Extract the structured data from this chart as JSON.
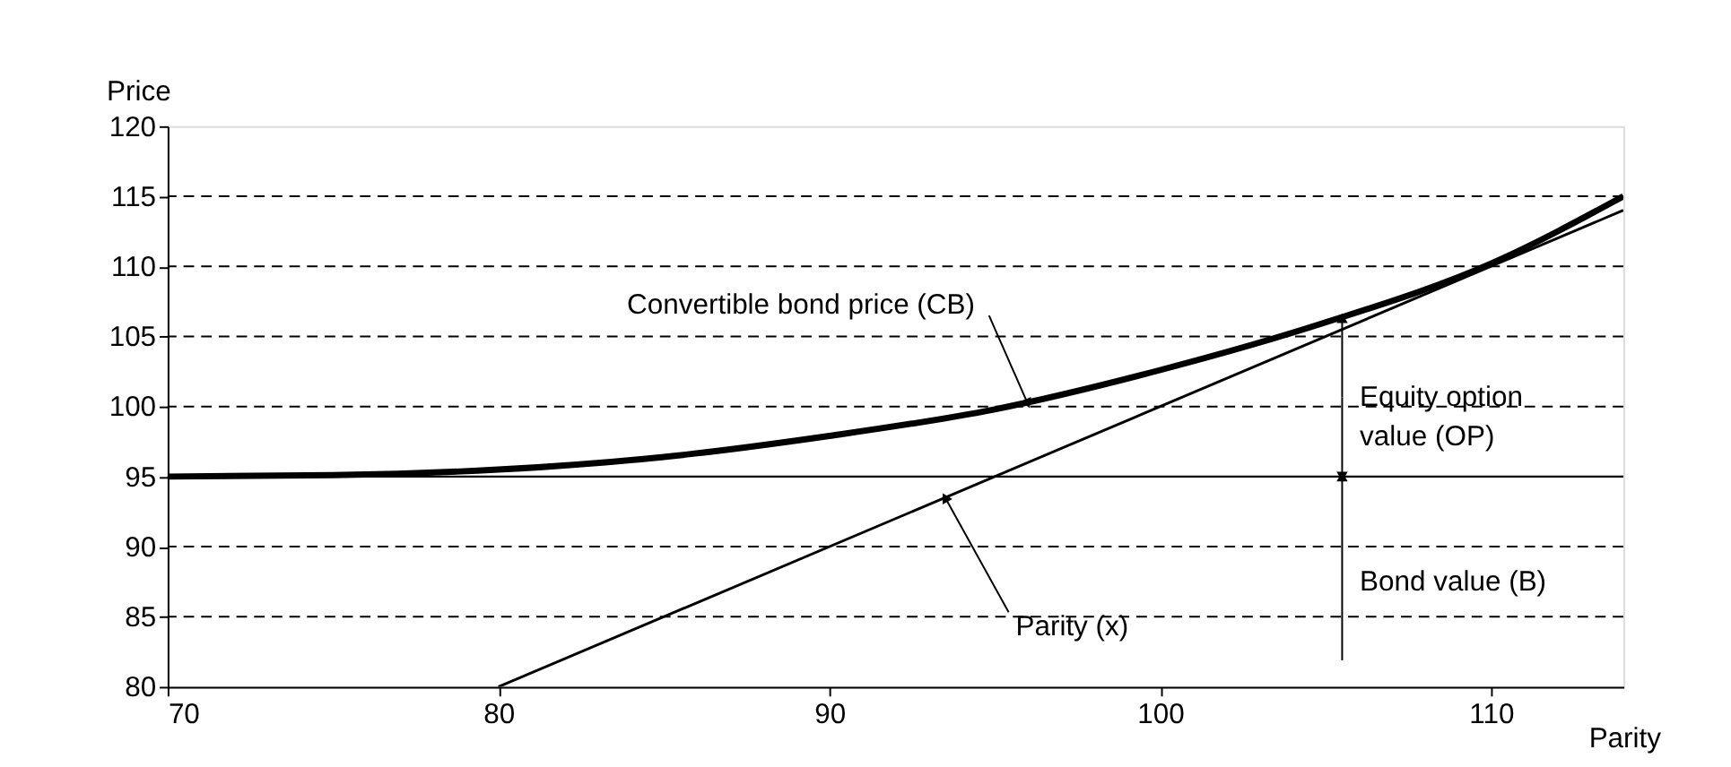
{
  "chart_data": {
    "type": "line",
    "xlabel": "Parity",
    "ylabel": "Price",
    "xlim": [
      70,
      114
    ],
    "xticks": [
      70,
      80,
      90,
      100,
      110
    ],
    "ylim": [
      80,
      120
    ],
    "yticks": [
      80,
      85,
      90,
      95,
      100,
      105,
      110,
      115,
      120
    ],
    "grid": "y",
    "series": [
      {
        "color": "#000000",
        "x": [
          70,
          75,
          80,
          85,
          90,
          95,
          100,
          105,
          110,
          114
        ],
        "values": [
          95,
          95.1,
          95.5,
          96.4,
          97.9,
          99.8,
          102.6,
          106,
          110.2,
          115
        ]
      },
      {
        "color": "#000000",
        "x": [
          80,
          114
        ],
        "values": [
          80,
          114
        ]
      }
    ],
    "ref_lines": [
      {
        "axis": "y",
        "value": 95,
        "color": "#000000",
        "line_style": "solid"
      }
    ],
    "annotations": [
      {
        "text": "Convertible bond price (CB)",
        "x": 96,
        "y": 100.2
      },
      {
        "text": "Parity (x)",
        "x": 93.5,
        "y": 93.5
      },
      {
        "text": "Equity option value (OP)",
        "x": 105.5,
        "y": 106.3
      },
      "Bond value (B)"
    ]
  }
}
